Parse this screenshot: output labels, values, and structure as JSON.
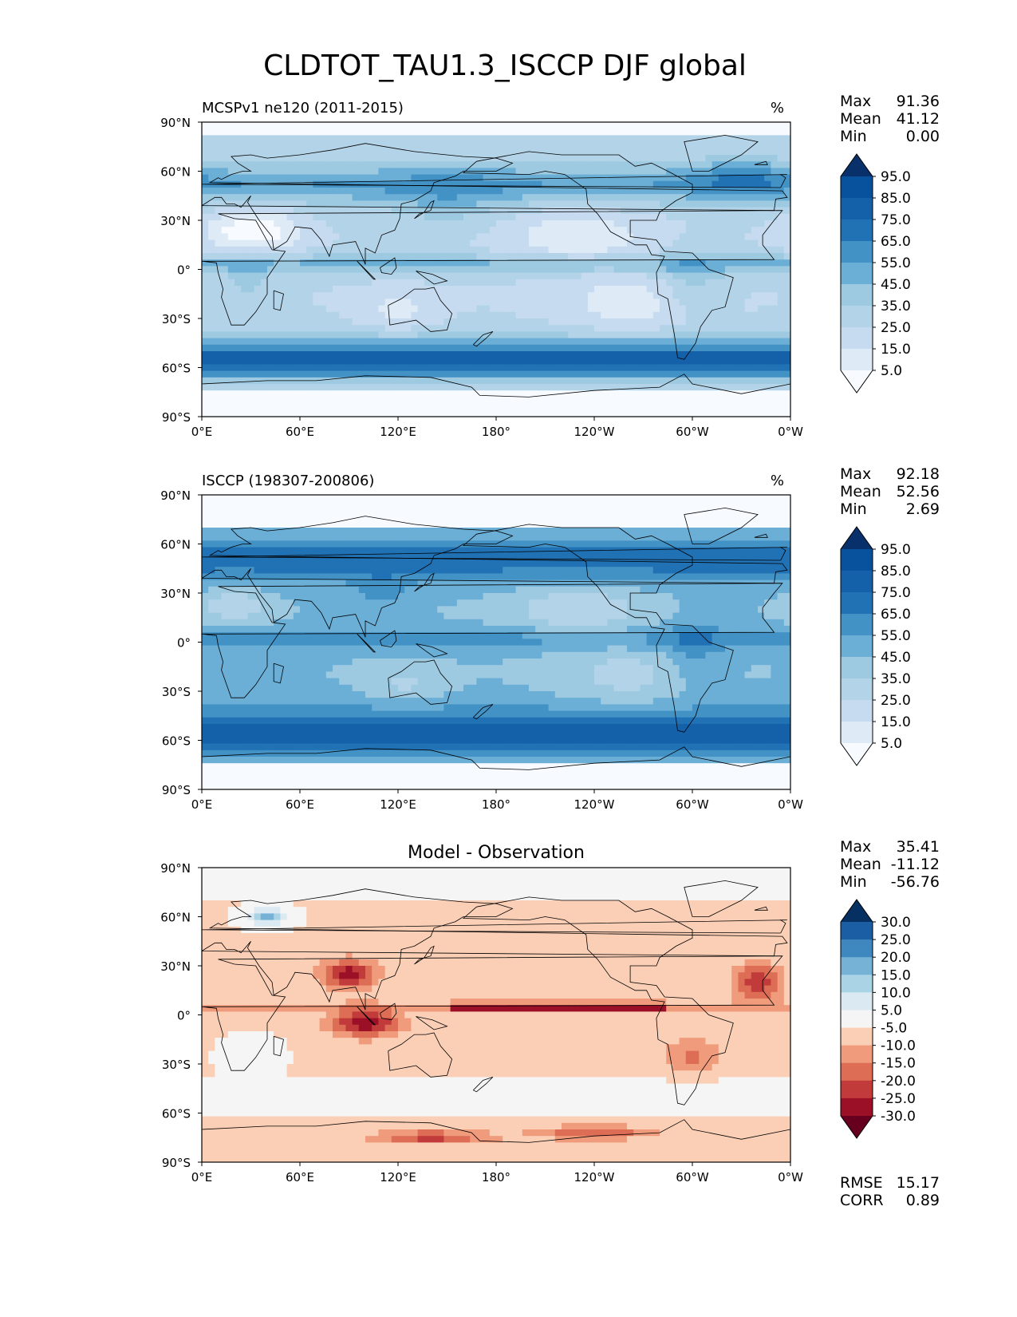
{
  "figure": {
    "title": "CLDTOT_TAU1.3_ISCCP DJF global"
  },
  "chart_data": [
    {
      "type": "heatmap",
      "title": "MCSPv1 ne120 (2011-2015)",
      "units": "%",
      "xlim": [
        0,
        360
      ],
      "ylim": [
        -90,
        90
      ],
      "x_ticks": [
        "0°E",
        "60°E",
        "120°E",
        "180°",
        "120°W",
        "60°W",
        "0°W"
      ],
      "y_ticks": [
        "90°N",
        "60°N",
        "30°N",
        "0°",
        "30°S",
        "60°S",
        "90°S"
      ],
      "stats": [
        {
          "label": "Max",
          "value": "91.36"
        },
        {
          "label": "Mean",
          "value": "41.12"
        },
        {
          "label": "Min",
          "value": "0.00"
        }
      ],
      "colorbar": {
        "colormap": "Blues",
        "levels": [
          "5.0",
          "15.0",
          "25.0",
          "35.0",
          "45.0",
          "55.0",
          "65.0",
          "75.0",
          "85.0",
          "95.0"
        ],
        "extend": "both"
      }
    },
    {
      "type": "heatmap",
      "title": "ISCCP (198307-200806)",
      "units": "%",
      "xlim": [
        0,
        360
      ],
      "ylim": [
        -90,
        90
      ],
      "x_ticks": [
        "0°E",
        "60°E",
        "120°E",
        "180°",
        "120°W",
        "60°W",
        "0°W"
      ],
      "y_ticks": [
        "90°N",
        "60°N",
        "30°N",
        "0°",
        "30°S",
        "60°S",
        "90°S"
      ],
      "stats": [
        {
          "label": "Max",
          "value": "92.18"
        },
        {
          "label": "Mean",
          "value": "52.56"
        },
        {
          "label": "Min",
          "value": "2.69"
        }
      ],
      "colorbar": {
        "colormap": "Blues",
        "levels": [
          "5.0",
          "15.0",
          "25.0",
          "35.0",
          "45.0",
          "55.0",
          "65.0",
          "75.0",
          "85.0",
          "95.0"
        ],
        "extend": "both"
      }
    },
    {
      "type": "heatmap",
      "title": "Model - Observation",
      "units": "",
      "xlim": [
        0,
        360
      ],
      "ylim": [
        -90,
        90
      ],
      "x_ticks": [
        "0°E",
        "60°E",
        "120°E",
        "180°",
        "120°W",
        "60°W",
        "0°W"
      ],
      "y_ticks": [
        "90°N",
        "60°N",
        "30°N",
        "0°",
        "30°S",
        "60°S",
        "90°S"
      ],
      "stats": [
        {
          "label": "Max",
          "value": "35.41"
        },
        {
          "label": "Mean",
          "value": "-11.12"
        },
        {
          "label": "Min",
          "value": "-56.76"
        }
      ],
      "extra_stats": [
        {
          "label": "RMSE",
          "value": "15.17"
        },
        {
          "label": "CORR",
          "value": "0.89"
        }
      ],
      "colorbar": {
        "colormap": "RdBu_r",
        "levels": [
          "-30.0",
          "-25.0",
          "-20.0",
          "-15.0",
          "-10.0",
          "-5.0",
          "5.0",
          "10.0",
          "15.0",
          "20.0",
          "25.0",
          "30.0"
        ],
        "extend": "both"
      }
    }
  ]
}
